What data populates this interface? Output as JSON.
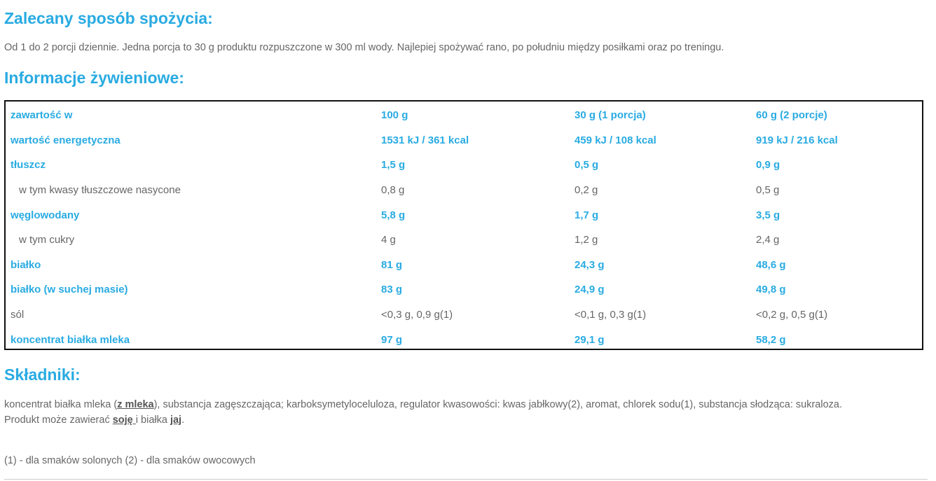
{
  "usage": {
    "heading": "Zalecany sposób spożycia:",
    "text": "Od 1 do 2 porcji dziennie. Jedna porcja to 30 g produktu rozpuszczone w 300 ml wody. Najlepiej spożywać rano, po południu między posiłkami oraz po treningu."
  },
  "nutrition": {
    "heading": "Informacje żywieniowe:",
    "rows": [
      {
        "label": "zawartość w",
        "v100": "100 g",
        "v30": "30 g (1 porcja)",
        "v60": "60 g (2 porcje)"
      },
      {
        "label": "wartość energetyczna",
        "v100": "1531 kJ / 361 kcal",
        "v30": "459 kJ / 108 kcal",
        "v60": "919 kJ / 216 kcal"
      },
      {
        "label": "tłuszcz",
        "v100": "1,5 g",
        "v30": "0,5 g",
        "v60": "0,9 g"
      },
      {
        "label": "w tym kwasy tłuszczowe nasycone",
        "v100": "0,8 g",
        "v30": "0,2 g",
        "v60": "0,5 g"
      },
      {
        "label": "węglowodany",
        "v100": "5,8 g",
        "v30": "1,7 g",
        "v60": "3,5 g"
      },
      {
        "label": "w tym cukry",
        "v100": "4 g",
        "v30": "1,2 g",
        "v60": "2,4 g"
      },
      {
        "label": "białko",
        "v100": "81 g",
        "v30": "24,3 g",
        "v60": "48,6 g"
      },
      {
        "label": "białko (w suchej masie)",
        "v100": "83 g",
        "v30": "24,9 g",
        "v60": "49,8 g"
      },
      {
        "label": "sól",
        "v100": "<0,3 g, 0,9 g(1)",
        "v30": "<0,1 g, 0,3 g(1)",
        "v60": "<0,2 g, 0,5 g(1)"
      },
      {
        "label": "koncentrat białka mleka",
        "v100": "97 g",
        "v30": "29,1 g",
        "v60": "58,2 g"
      }
    ]
  },
  "ingredients": {
    "heading": "Składniki:",
    "part1": "koncentrat białka mleka (",
    "allergen_milk": "z mleka",
    "part2": "), substancja zagęszczająca; karboksymetyloceluloza, regulator kwasowości: kwas jabłkowy(2), aromat, chlorek sodu(1), substancja słodząca: sukraloza.",
    "may_contain_prefix": "Produkt może zawierać ",
    "allergen_soy": "soję ",
    "may_contain_mid": "i białka ",
    "allergen_egg": "jaj",
    "may_contain_suffix": "."
  },
  "footnote": "(1) - dla smaków solonych (2) - dla smaków owocowych",
  "colors": {
    "accent": "#29abe2",
    "text": "#666666",
    "border": "#111111"
  }
}
